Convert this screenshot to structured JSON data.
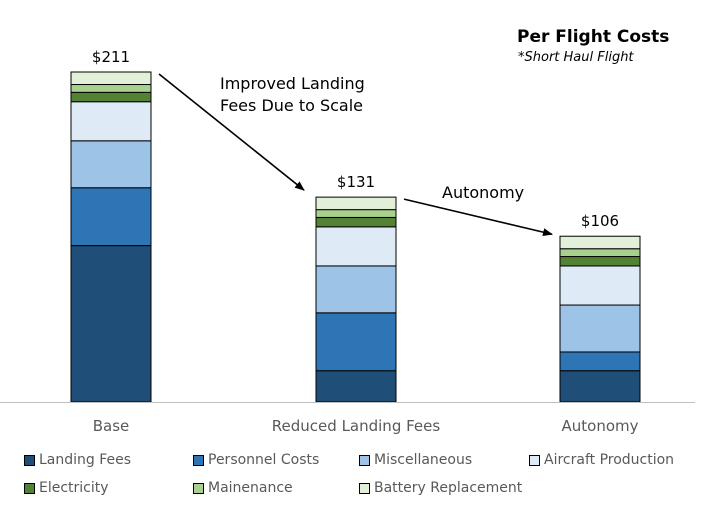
{
  "chart_data": {
    "type": "bar",
    "stacked": true,
    "title": "Per Flight Costs",
    "subtitle": "*Short Haul Flight",
    "categories": [
      "Base",
      "Reduced Landing Fees",
      "Autonomy"
    ],
    "totals": [
      "$211",
      "$131",
      "$106"
    ],
    "ylim": [
      0,
      235
    ],
    "series": [
      {
        "name": "Landing Fees",
        "color": "#1f4e79",
        "values": [
          100,
          20,
          20
        ]
      },
      {
        "name": "Personnel Costs",
        "color": "#2e75b6",
        "values": [
          37,
          37,
          12
        ]
      },
      {
        "name": "Miscellaneous",
        "color": "#9dc3e6",
        "values": [
          30,
          30,
          30
        ]
      },
      {
        "name": "Aircraft Production",
        "color": "#deebf7",
        "values": [
          25,
          25,
          25
        ]
      },
      {
        "name": "Electricity",
        "color": "#548235",
        "values": [
          6,
          6,
          6
        ]
      },
      {
        "name": "Mainenance",
        "color": "#a9d18e",
        "values": [
          5,
          5,
          5
        ]
      },
      {
        "name": "Battery Replacement",
        "color": "#e2f0d9",
        "values": [
          8,
          8,
          8
        ]
      }
    ],
    "annotations": [
      {
        "text": "Improved Landing Fees Due to Scale",
        "lines": [
          "Improved Landing",
          "Fees Due to Scale"
        ],
        "from_category": "Base",
        "to_category": "Reduced Landing Fees"
      },
      {
        "text": "Autonomy",
        "lines": [
          "Autonomy"
        ],
        "from_category": "Reduced Landing Fees",
        "to_category": "Autonomy"
      }
    ],
    "legend_position": "bottom",
    "grid": false
  }
}
